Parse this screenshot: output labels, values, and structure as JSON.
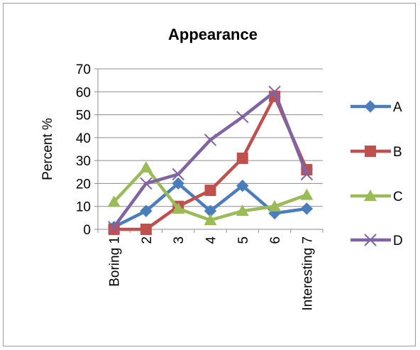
{
  "chart_data": {
    "type": "line",
    "title": "Appearance",
    "xlabel": "",
    "ylabel": "Percent %",
    "ylim": [
      0,
      70
    ],
    "yticks": [
      0,
      10,
      20,
      30,
      40,
      50,
      60,
      70
    ],
    "categories": [
      "Boring 1",
      "2",
      "3",
      "4",
      "5",
      "6",
      "Interesting 7"
    ],
    "grid": "horizontal",
    "legend": "right",
    "series": [
      {
        "name": "A",
        "color": "#4a7ebb",
        "marker": "diamond",
        "values": [
          1,
          8,
          20,
          8,
          19,
          7,
          9
        ]
      },
      {
        "name": "B",
        "color": "#c0504d",
        "marker": "square",
        "values": [
          0,
          0,
          10,
          17,
          31,
          58,
          26
        ]
      },
      {
        "name": "C",
        "color": "#9bbb59",
        "marker": "triangle",
        "values": [
          12,
          27,
          9,
          4,
          8,
          10,
          15
        ]
      },
      {
        "name": "D",
        "color": "#8064a2",
        "marker": "x",
        "values": [
          1,
          20,
          24,
          39,
          49,
          60,
          24
        ]
      }
    ]
  }
}
